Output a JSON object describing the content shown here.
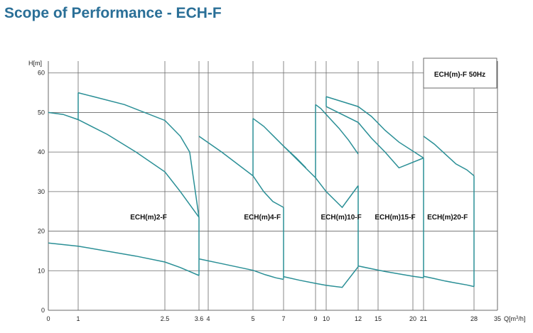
{
  "page": {
    "title": "Scope of Performance - ECH-F"
  },
  "chart_data": {
    "type": "line",
    "title": "Scope of Performance - ECH-F",
    "ylabel": "H[m]",
    "xlabel_prefix": "Q[m",
    "xlabel_sup": "3",
    "xlabel_suffix": "/h]",
    "legend_box": "ECH(m)-F  50Hz",
    "line_color": "#2a8f96",
    "grid_color": "#6a6a6a",
    "grid": true,
    "x_ticks": [
      0,
      1,
      2.5,
      3.6,
      4,
      5,
      7,
      9,
      10,
      12,
      15,
      20,
      21,
      28,
      35
    ],
    "y_ticks": [
      0,
      10,
      20,
      30,
      40,
      50,
      60
    ],
    "ylim": [
      0,
      63
    ],
    "regions": [
      {
        "name": "ECH(m)2-F",
        "label_at": [
          1.9,
          23
        ],
        "upper_curve": [
          [
            1,
            55
          ],
          [
            1.8,
            52
          ],
          [
            2.5,
            48
          ],
          [
            3.0,
            44
          ],
          [
            3.3,
            40
          ],
          [
            3.6,
            23.5
          ]
        ],
        "lower_upper_curve": [
          [
            0,
            50
          ],
          [
            0.5,
            49.5
          ],
          [
            1,
            48.2
          ],
          [
            1.5,
            44.5
          ],
          [
            2.0,
            40
          ],
          [
            2.5,
            35
          ],
          [
            3.0,
            30
          ],
          [
            3.6,
            23.5
          ]
        ],
        "min_curve": [
          [
            0,
            17
          ],
          [
            1,
            16.2
          ],
          [
            2.0,
            13.7
          ],
          [
            2.5,
            12.2
          ],
          [
            3.0,
            10.8
          ],
          [
            3.6,
            8.8
          ]
        ],
        "vertical_edges": [
          [
            1,
            48.2,
            55
          ],
          [
            3.6,
            8.8,
            23.5
          ]
        ]
      },
      {
        "name": "ECH(m)4-F",
        "label_at": [
          4.8,
          23
        ],
        "upper_curve": [
          [
            3.6,
            44
          ],
          [
            4.3,
            40
          ],
          [
            5.0,
            34
          ],
          [
            5.7,
            30
          ],
          [
            6.3,
            27.5
          ],
          [
            7.0,
            26
          ]
        ],
        "lower_upper_curve": [
          [
            5,
            48.5
          ],
          [
            5.7,
            46.5
          ],
          [
            6.3,
            44.2
          ],
          [
            7.0,
            41.5
          ],
          [
            7.8,
            38.5
          ],
          [
            8.4,
            36
          ]
        ],
        "min_curve": [
          [
            3.6,
            13
          ],
          [
            4.3,
            11.8
          ],
          [
            5.0,
            10.1
          ],
          [
            5.8,
            9
          ],
          [
            6.5,
            8.2
          ],
          [
            7.0,
            7.8
          ]
        ],
        "vertical_edges": [
          [
            5,
            34,
            48.5
          ],
          [
            7,
            8,
            26
          ]
        ]
      },
      {
        "name": "ECH(m)10-F",
        "label_at": [
          9.5,
          23
        ],
        "upper_curve": [
          [
            9,
            52
          ],
          [
            9.5,
            51
          ],
          [
            10,
            49.5
          ],
          [
            10.8,
            46
          ],
          [
            11.4,
            43
          ],
          [
            12,
            39.5
          ]
        ],
        "lower_upper_curve": [
          [
            7,
            41.5
          ],
          [
            8,
            37.5
          ],
          [
            9,
            33.5
          ],
          [
            10,
            30
          ],
          [
            11,
            26
          ],
          [
            12,
            31.5
          ]
        ],
        "min_curve": [
          [
            7,
            8.5
          ],
          [
            8,
            7.6
          ],
          [
            9,
            6.8
          ],
          [
            10,
            6.3
          ],
          [
            11,
            5.8
          ],
          [
            12,
            11
          ]
        ],
        "vertical_edges": [
          [
            9,
            33.5,
            52
          ],
          [
            12,
            11,
            31.5
          ]
        ]
      },
      {
        "name": "ECH(m)15-F",
        "label_at": [
          14.5,
          23
        ],
        "upper_curve": [
          [
            10,
            54
          ],
          [
            12,
            51.5
          ],
          [
            14,
            49
          ],
          [
            16,
            45.5
          ],
          [
            18,
            42.5
          ],
          [
            21,
            38.5
          ]
        ],
        "lower_upper_curve": [
          [
            10,
            51.5
          ],
          [
            12,
            47.5
          ],
          [
            14,
            43.5
          ],
          [
            16,
            40
          ],
          [
            18,
            36
          ],
          [
            21,
            38.5
          ]
        ],
        "min_curve": [
          [
            12,
            11.2
          ],
          [
            14,
            10.5
          ],
          [
            16,
            9.8
          ],
          [
            18,
            9.2
          ],
          [
            20,
            8.6
          ],
          [
            21,
            8.2
          ]
        ],
        "vertical_edges": [
          [
            10,
            51.5,
            54
          ],
          [
            21,
            8.2,
            38.5
          ]
        ]
      },
      {
        "name": "ECH(m)20-F",
        "label_at": [
          21.5,
          23
        ],
        "upper_curve": [
          [
            21,
            44
          ],
          [
            22.5,
            42
          ],
          [
            24,
            39.5
          ],
          [
            25.5,
            37
          ],
          [
            27,
            35.5
          ],
          [
            28,
            34
          ]
        ],
        "min_curve": [
          [
            21,
            8.6
          ],
          [
            22.5,
            8
          ],
          [
            24,
            7.4
          ],
          [
            25.5,
            6.9
          ],
          [
            27,
            6.4
          ],
          [
            28,
            6
          ]
        ],
        "vertical_edges": [
          [
            28,
            6,
            34
          ]
        ]
      }
    ],
    "region_labels": [
      "ECH(m)2-F",
      "ECH(m)4-F",
      "ECH(m)10-F",
      "ECH(m)15-F",
      "ECH(m)20-F"
    ]
  }
}
